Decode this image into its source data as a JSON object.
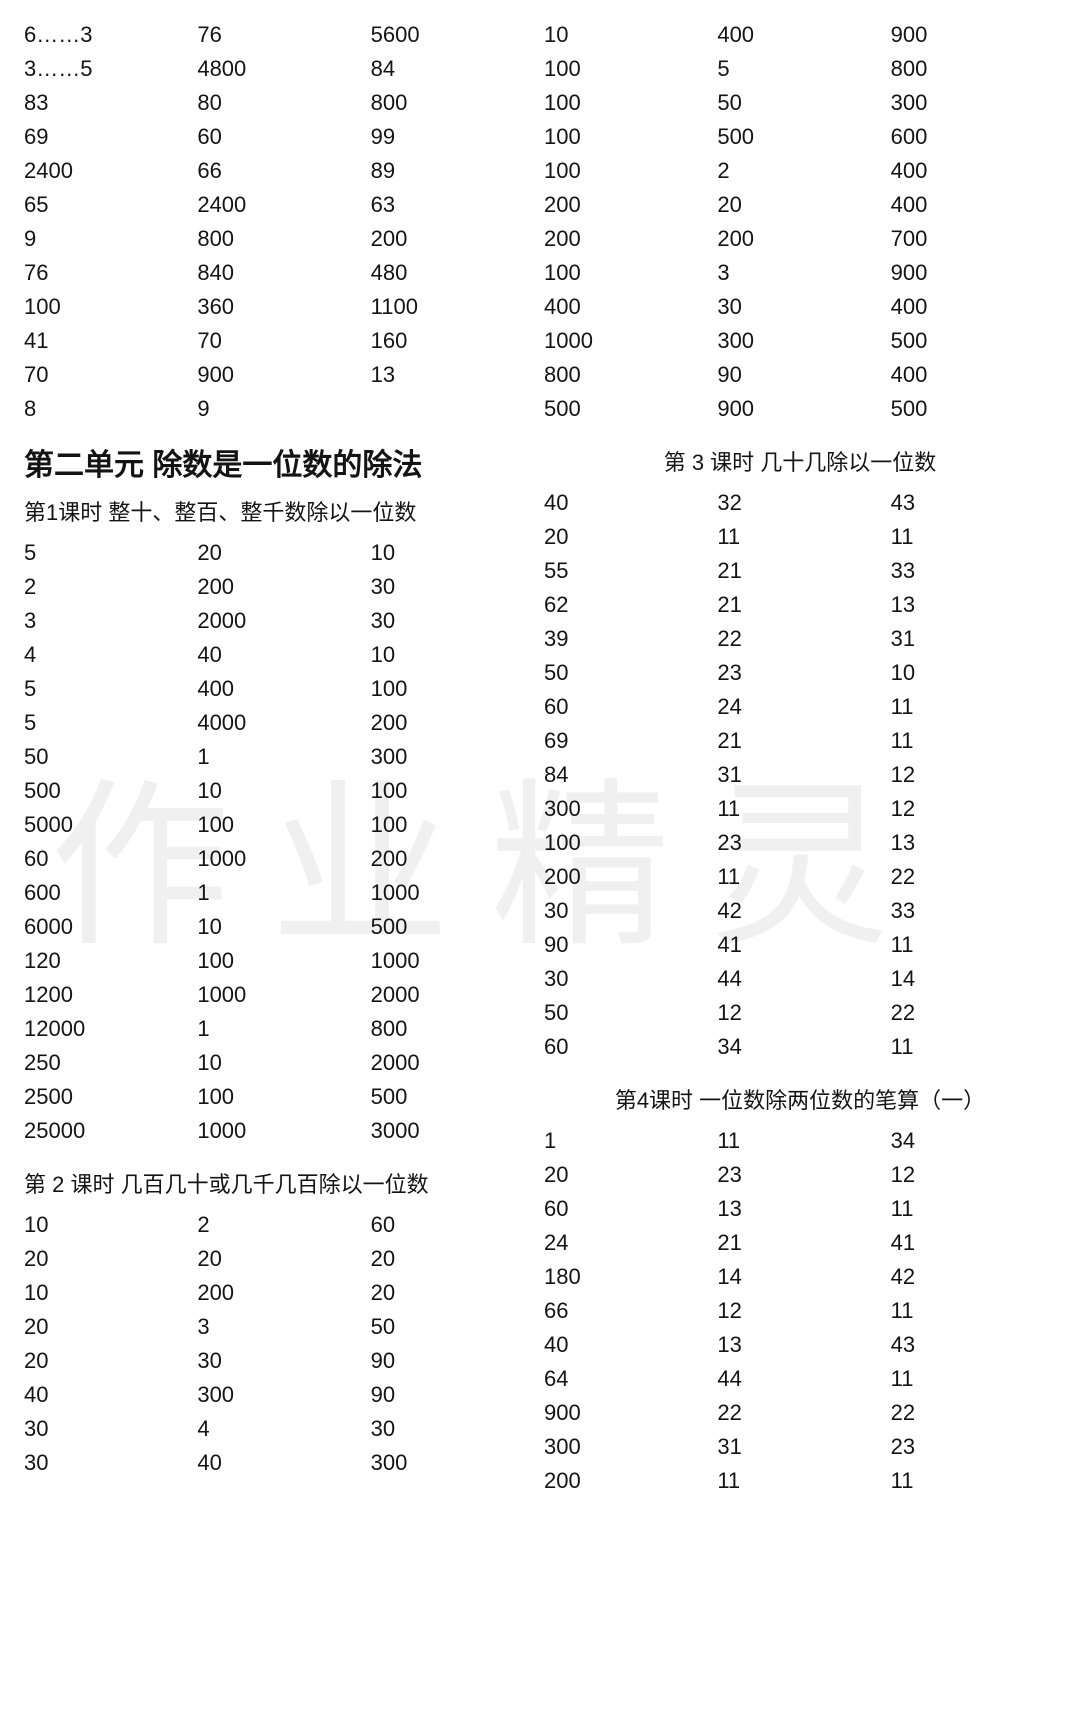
{
  "topTable": {
    "columns": 6,
    "rows": [
      [
        "6……3",
        "76",
        "5600",
        "10",
        "400",
        "900"
      ],
      [
        "3……5",
        "4800",
        "84",
        "100",
        "5",
        "800"
      ],
      [
        "83",
        "80",
        "800",
        "100",
        "50",
        "300"
      ],
      [
        "69",
        "60",
        "99",
        "100",
        "500",
        "600"
      ],
      [
        "2400",
        "66",
        "89",
        "100",
        "2",
        "400"
      ],
      [
        "65",
        "2400",
        "63",
        "200",
        "20",
        "400"
      ],
      [
        "9",
        "800",
        "200",
        "200",
        "200",
        "700"
      ],
      [
        "76",
        "840",
        "480",
        "100",
        "3",
        "900"
      ],
      [
        "100",
        "360",
        "1100",
        "400",
        "30",
        "400"
      ],
      [
        "41",
        "70",
        "160",
        "1000",
        "300",
        "500"
      ],
      [
        "70",
        "900",
        "13",
        "800",
        "90",
        "400"
      ],
      [
        "8",
        "9",
        "",
        "500",
        "900",
        "500"
      ]
    ]
  },
  "unitHeading": "第二单元   除数是一位数的除法",
  "lesson1": {
    "title": "第1课时   整十、整百、整千数除以一位数",
    "columns": 3,
    "rows": [
      [
        "5",
        "20",
        "10"
      ],
      [
        "2",
        "200",
        "30"
      ],
      [
        "3",
        "2000",
        "30"
      ],
      [
        "4",
        "40",
        "10"
      ],
      [
        "5",
        "400",
        "100"
      ],
      [
        "5",
        "4000",
        "200"
      ],
      [
        "50",
        "1",
        "300"
      ],
      [
        "500",
        "10",
        "100"
      ],
      [
        "5000",
        "100",
        "100"
      ],
      [
        "60",
        "1000",
        "200"
      ],
      [
        "600",
        "1",
        "1000"
      ],
      [
        "6000",
        "10",
        "500"
      ],
      [
        "120",
        "100",
        "1000"
      ],
      [
        "1200",
        "1000",
        "2000"
      ],
      [
        "12000",
        "1",
        "800"
      ],
      [
        "250",
        "10",
        "2000"
      ],
      [
        "2500",
        "100",
        "500"
      ],
      [
        "25000",
        "1000",
        "3000"
      ]
    ]
  },
  "lesson2": {
    "title": "第 2 课时   几百几十或几千几百除以一位数",
    "columns": 3,
    "rows": [
      [
        "10",
        "2",
        "60"
      ],
      [
        "20",
        "20",
        "20"
      ],
      [
        "10",
        "200",
        "20"
      ],
      [
        "20",
        "3",
        "50"
      ],
      [
        "20",
        "30",
        "90"
      ],
      [
        "40",
        "300",
        "90"
      ],
      [
        "30",
        "4",
        "30"
      ],
      [
        "30",
        "40",
        "300"
      ]
    ]
  },
  "lesson3": {
    "title": "第 3 课时   几十几除以一位数",
    "columns": 3,
    "rows": [
      [
        "40",
        "32",
        "43"
      ],
      [
        "20",
        "11",
        "11"
      ],
      [
        "55",
        "21",
        "33"
      ],
      [
        "62",
        "21",
        "13"
      ],
      [
        "39",
        "22",
        "31"
      ],
      [
        "50",
        "23",
        "10"
      ],
      [
        "60",
        "24",
        "11"
      ],
      [
        "69",
        "21",
        "11"
      ],
      [
        "84",
        "31",
        "12"
      ],
      [
        "300",
        "11",
        "12"
      ],
      [
        "100",
        "23",
        "13"
      ],
      [
        "200",
        "11",
        "22"
      ],
      [
        "30",
        "42",
        "33"
      ],
      [
        "90",
        "41",
        "11"
      ],
      [
        "30",
        "44",
        "14"
      ],
      [
        "50",
        "12",
        "22"
      ],
      [
        "60",
        "34",
        "11"
      ]
    ]
  },
  "lesson4": {
    "title": "第4课时   一位数除两位数的笔算（一）",
    "columns": 3,
    "rows": [
      [
        "1",
        "11",
        "34"
      ],
      [
        "20",
        "23",
        "12"
      ],
      [
        "60",
        "13",
        "11"
      ],
      [
        "24",
        "21",
        "41"
      ],
      [
        "180",
        "14",
        "42"
      ],
      [
        "66",
        "12",
        "11"
      ],
      [
        "40",
        "13",
        "43"
      ],
      [
        "64",
        "44",
        "11"
      ],
      [
        "900",
        "22",
        "22"
      ],
      [
        "300",
        "31",
        "23"
      ],
      [
        "200",
        "11",
        "11"
      ]
    ]
  },
  "watermark": "作业精灵"
}
